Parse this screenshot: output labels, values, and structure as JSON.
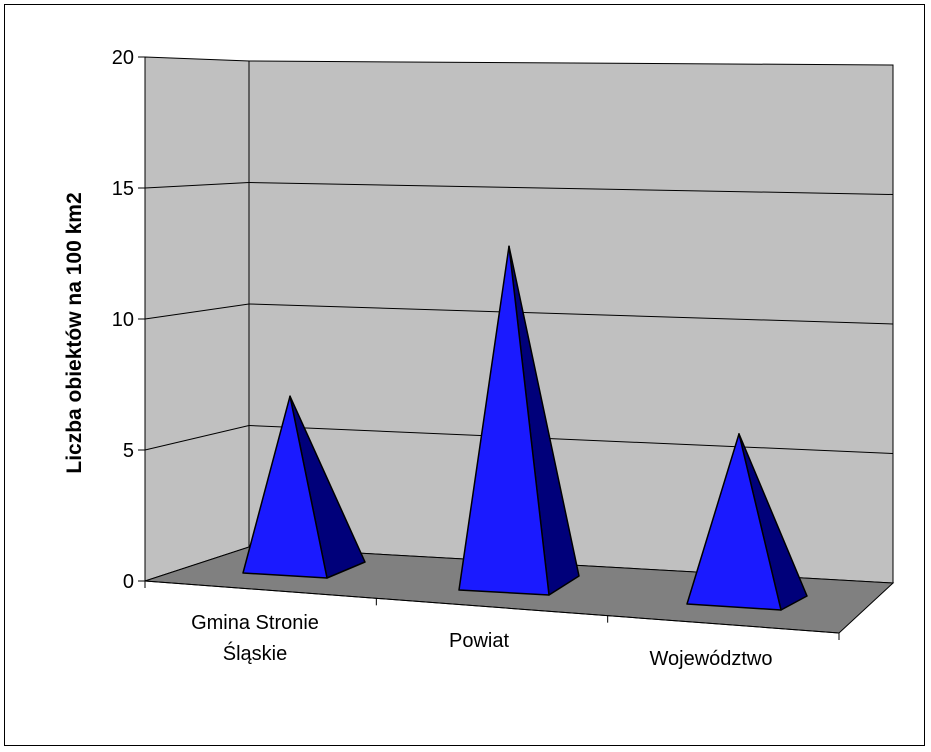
{
  "chart_data": {
    "type": "bar",
    "style": "3d-pyramid",
    "categories": [
      "Gmina Stronie Śląskie",
      "Powiat",
      "Województwo"
    ],
    "category_lines": [
      [
        "Gmina Stronie",
        "Śląskie"
      ],
      [
        "Powiat"
      ],
      [
        "Województwo"
      ]
    ],
    "values": [
      5.8,
      11.2,
      5.6
    ],
    "ylabel": "Liczba obiektów na 100 km2",
    "xlabel": "",
    "ylim": [
      0,
      20
    ],
    "yticks": [
      "0",
      "5",
      "10",
      "15",
      "20"
    ],
    "grid": true,
    "legend": "none",
    "colors": {
      "pyramid_front": "#1a1aff",
      "pyramid_side": "#00007a",
      "wall": "#c0c0c0",
      "floor": "#808080"
    }
  }
}
